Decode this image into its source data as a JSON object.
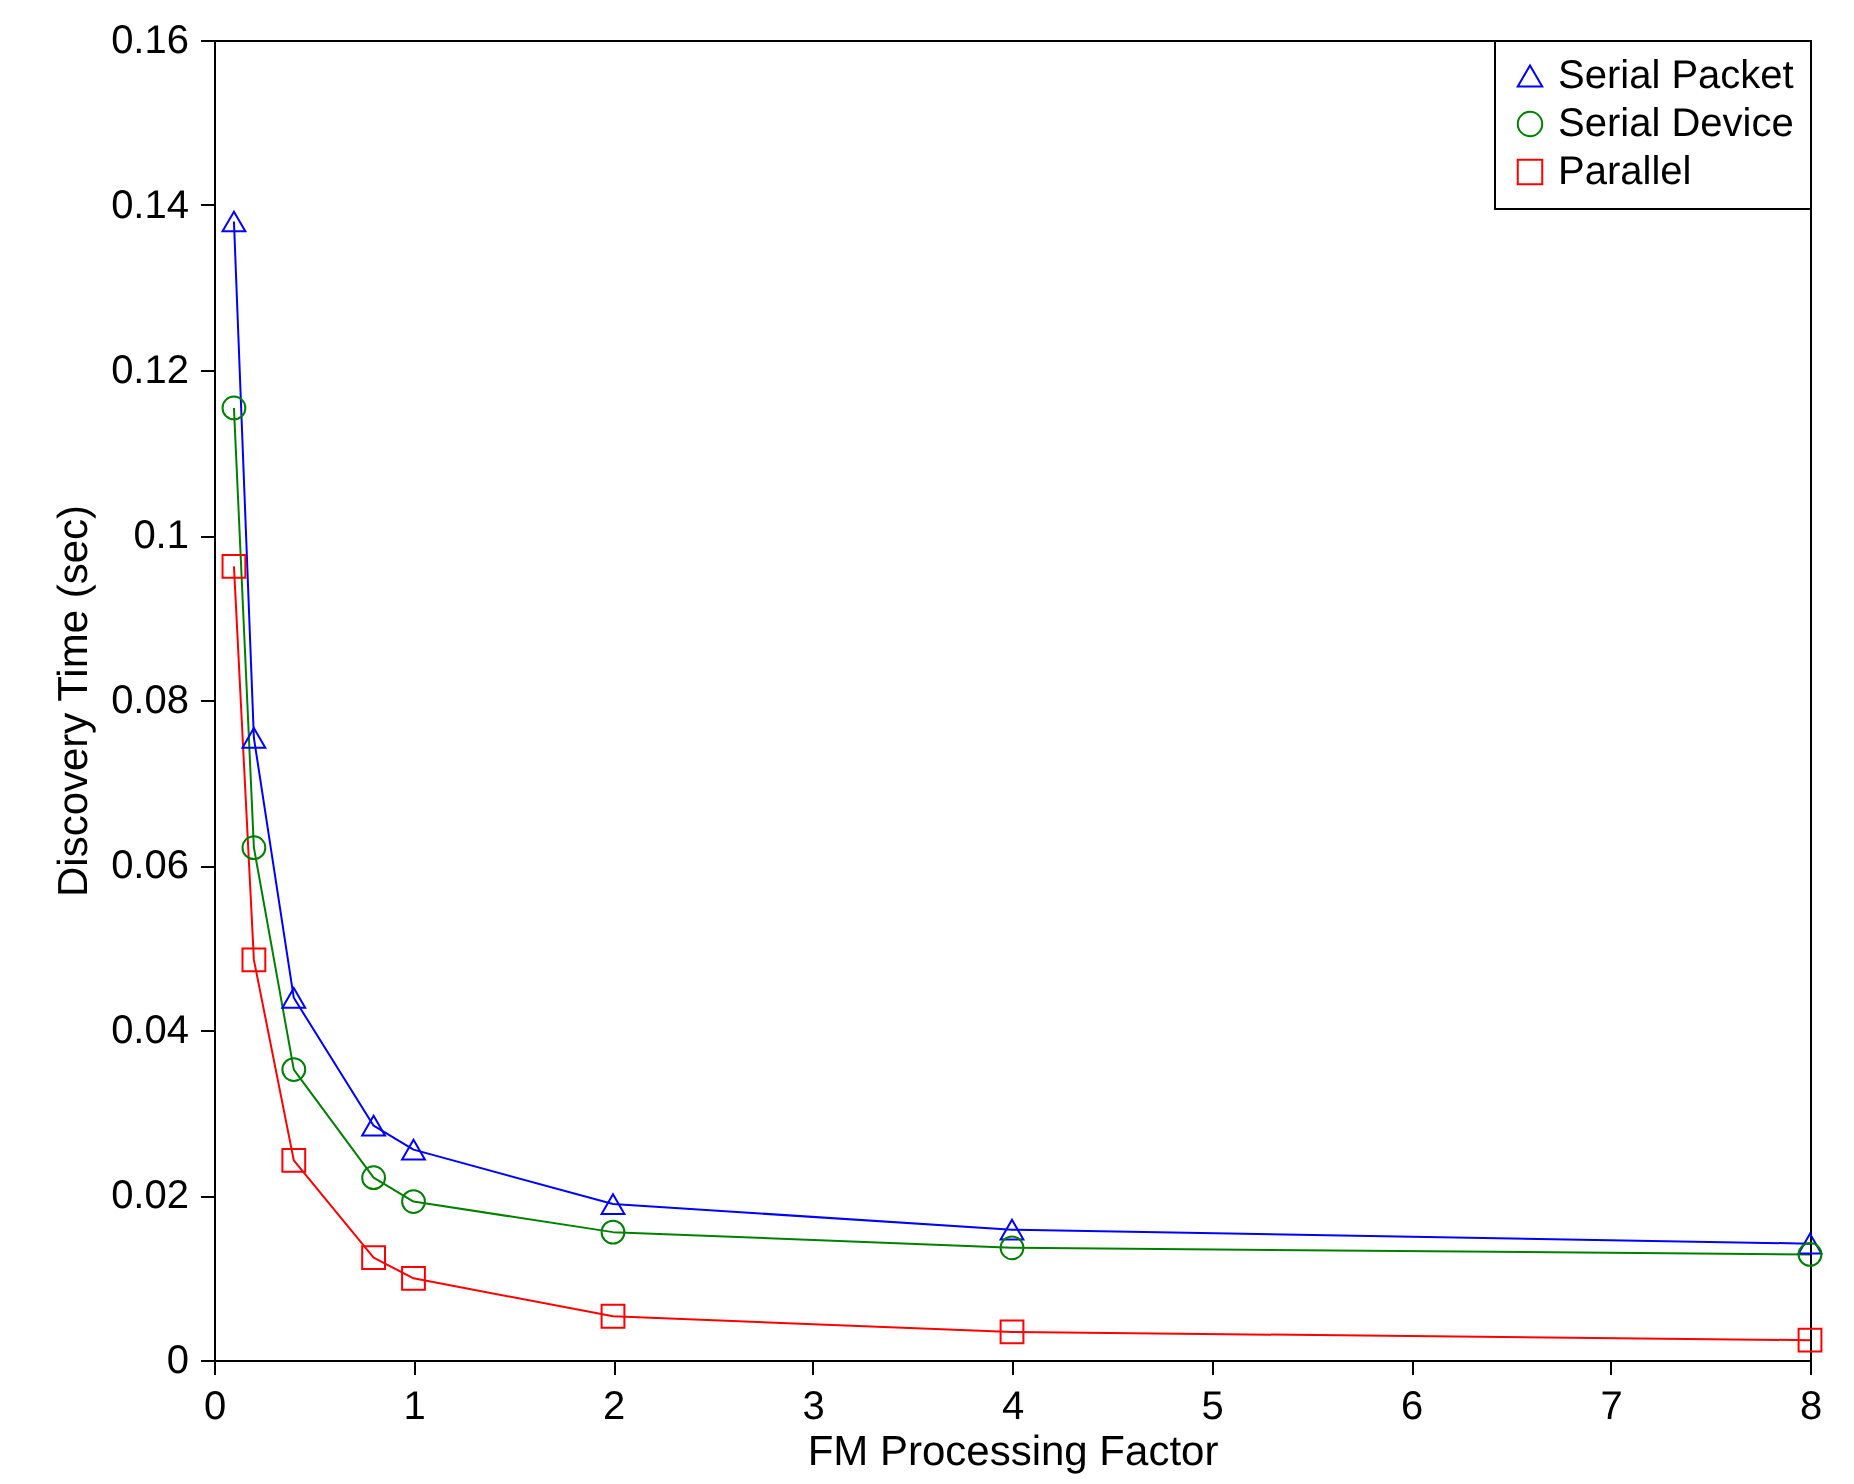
{
  "chart_data": {
    "type": "line",
    "xlabel": "FM Processing Factor",
    "ylabel": "Discovery Time (sec)",
    "x": [
      0.1,
      0.2,
      0.4,
      0.8,
      1,
      2,
      4,
      8
    ],
    "series": [
      {
        "name": "Serial Packet",
        "color": "#0000ff",
        "marker": "triangle",
        "values": [
          0.138,
          0.0754,
          0.0439,
          0.0284,
          0.0255,
          0.0189,
          0.0158,
          0.0141
        ]
      },
      {
        "name": "Serial Device",
        "color": "#008000",
        "marker": "circle",
        "values": [
          0.1154,
          0.0621,
          0.0352,
          0.0221,
          0.0192,
          0.0155,
          0.0136,
          0.0128
        ]
      },
      {
        "name": "Parallel",
        "color": "#ff0000",
        "marker": "square",
        "values": [
          0.0962,
          0.0485,
          0.0242,
          0.0124,
          0.0099,
          0.0053,
          0.0034,
          0.0024
        ]
      }
    ],
    "xlim": [
      0,
      8
    ],
    "xticks": [
      0,
      1,
      2,
      3,
      4,
      5,
      6,
      7,
      8
    ],
    "ylim": [
      0,
      0.16
    ],
    "yticks": [
      0,
      0.02,
      0.04,
      0.06,
      0.08,
      0.1,
      0.12,
      0.14,
      0.16
    ],
    "grid": false,
    "legend": "top right",
    "line_style": "solid"
  }
}
